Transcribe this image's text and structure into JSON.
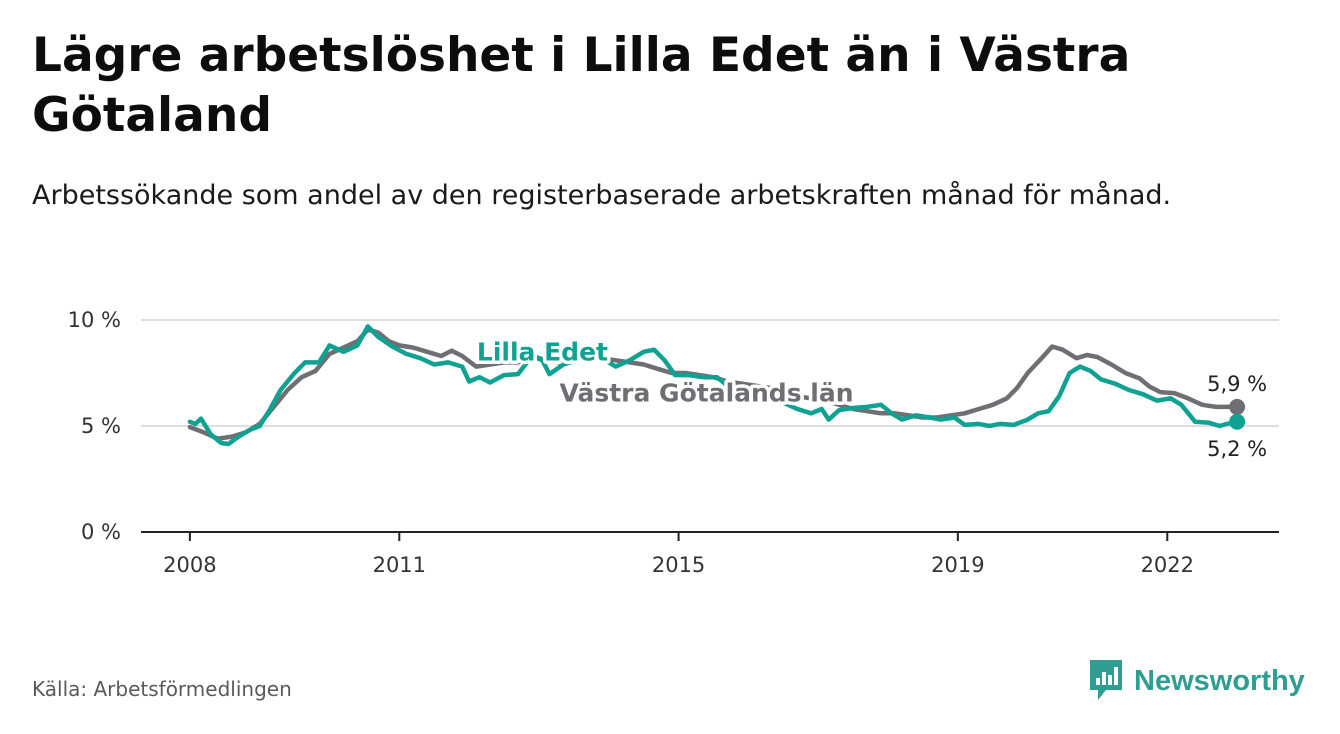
{
  "header": {
    "title": "Lägre arbetslöshet i Lilla Edet än i Västra Götaland",
    "subtitle": "Arbetssökande som andel av den registerbaserade arbetskraften månad för månad."
  },
  "footer": {
    "source": "Källa: Arbetsförmedlingen",
    "brand": "Newsworthy"
  },
  "colors": {
    "lilla_edet": "#0fa192",
    "vastra_gotaland": "#6f6e73",
    "grid": "#d4d4d4",
    "axis": "#222222"
  },
  "chart_data": {
    "type": "line",
    "title": "Lägre arbetslöshet i Lilla Edet än i Västra Götaland",
    "ylabel": "",
    "xlabel": "",
    "ylim": [
      0,
      10
    ],
    "xlim": [
      2007.3,
      2023.6
    ],
    "y_ticks": [
      {
        "value": 0,
        "label": "0 %"
      },
      {
        "value": 5,
        "label": "5 %"
      },
      {
        "value": 10,
        "label": "10 %"
      }
    ],
    "x_ticks": [
      {
        "value": 2008,
        "label": "2008"
      },
      {
        "value": 2011,
        "label": "2011"
      },
      {
        "value": 2015,
        "label": "2015"
      },
      {
        "value": 2019,
        "label": "2019"
      },
      {
        "value": 2022,
        "label": "2022"
      }
    ],
    "series": [
      {
        "name": "Västra Götalands län",
        "label": "Västra Götalands län",
        "color": "#6f6e73",
        "end_label": "5,9 %",
        "points": [
          [
            2008.0,
            4.95
          ],
          [
            2008.2,
            4.7
          ],
          [
            2008.4,
            4.4
          ],
          [
            2008.6,
            4.5
          ],
          [
            2008.8,
            4.7
          ],
          [
            2009.0,
            5.1
          ],
          [
            2009.2,
            5.9
          ],
          [
            2009.4,
            6.7
          ],
          [
            2009.6,
            7.3
          ],
          [
            2009.8,
            7.6
          ],
          [
            2010.0,
            8.4
          ],
          [
            2010.2,
            8.7
          ],
          [
            2010.4,
            9.0
          ],
          [
            2010.55,
            9.55
          ],
          [
            2010.7,
            9.4
          ],
          [
            2010.85,
            9.0
          ],
          [
            2011.0,
            8.8
          ],
          [
            2011.2,
            8.7
          ],
          [
            2011.4,
            8.5
          ],
          [
            2011.6,
            8.3
          ],
          [
            2011.75,
            8.55
          ],
          [
            2011.9,
            8.3
          ],
          [
            2012.1,
            7.8
          ],
          [
            2012.3,
            7.9
          ],
          [
            2012.5,
            8.0
          ],
          [
            2012.7,
            8.0
          ],
          [
            2012.9,
            8.3
          ],
          [
            2013.1,
            8.1
          ],
          [
            2013.3,
            8.0
          ],
          [
            2013.5,
            8.2
          ],
          [
            2013.7,
            8.1
          ],
          [
            2013.9,
            8.2
          ],
          [
            2014.1,
            8.1
          ],
          [
            2014.3,
            8.0
          ],
          [
            2014.5,
            7.9
          ],
          [
            2014.7,
            7.7
          ],
          [
            2014.9,
            7.5
          ],
          [
            2015.1,
            7.5
          ],
          [
            2015.3,
            7.4
          ],
          [
            2015.5,
            7.3
          ],
          [
            2015.7,
            7.1
          ],
          [
            2015.9,
            7.0
          ],
          [
            2016.1,
            6.9
          ],
          [
            2016.3,
            6.8
          ],
          [
            2016.5,
            6.6
          ],
          [
            2016.7,
            6.4
          ],
          [
            2016.9,
            6.3
          ],
          [
            2017.1,
            6.2
          ],
          [
            2017.3,
            6.0
          ],
          [
            2017.5,
            5.8
          ],
          [
            2017.7,
            5.7
          ],
          [
            2017.9,
            5.6
          ],
          [
            2018.1,
            5.6
          ],
          [
            2018.3,
            5.5
          ],
          [
            2018.5,
            5.4
          ],
          [
            2018.7,
            5.4
          ],
          [
            2018.9,
            5.5
          ],
          [
            2019.1,
            5.6
          ],
          [
            2019.3,
            5.8
          ],
          [
            2019.5,
            6.0
          ],
          [
            2019.7,
            6.3
          ],
          [
            2019.85,
            6.8
          ],
          [
            2020.0,
            7.5
          ],
          [
            2020.2,
            8.2
          ],
          [
            2020.35,
            8.75
          ],
          [
            2020.5,
            8.6
          ],
          [
            2020.7,
            8.2
          ],
          [
            2020.85,
            8.35
          ],
          [
            2021.0,
            8.25
          ],
          [
            2021.2,
            7.9
          ],
          [
            2021.4,
            7.5
          ],
          [
            2021.6,
            7.25
          ],
          [
            2021.75,
            6.85
          ],
          [
            2021.9,
            6.6
          ],
          [
            2022.1,
            6.55
          ],
          [
            2022.3,
            6.3
          ],
          [
            2022.5,
            6.0
          ],
          [
            2022.7,
            5.9
          ],
          [
            2022.9,
            5.9
          ],
          [
            2023.0,
            5.9
          ]
        ]
      },
      {
        "name": "Lilla Edet",
        "label": "Lilla Edet",
        "color": "#0fa192",
        "end_label": "5,2 %",
        "points": [
          [
            2008.0,
            5.2
          ],
          [
            2008.08,
            5.1
          ],
          [
            2008.16,
            5.35
          ],
          [
            2008.3,
            4.6
          ],
          [
            2008.45,
            4.2
          ],
          [
            2008.55,
            4.15
          ],
          [
            2008.7,
            4.5
          ],
          [
            2008.85,
            4.8
          ],
          [
            2009.0,
            5.0
          ],
          [
            2009.15,
            5.8
          ],
          [
            2009.3,
            6.7
          ],
          [
            2009.5,
            7.5
          ],
          [
            2009.65,
            8.0
          ],
          [
            2009.85,
            8.0
          ],
          [
            2010.0,
            8.8
          ],
          [
            2010.2,
            8.5
          ],
          [
            2010.4,
            8.8
          ],
          [
            2010.55,
            9.7
          ],
          [
            2010.7,
            9.2
          ],
          [
            2010.9,
            8.75
          ],
          [
            2011.1,
            8.4
          ],
          [
            2011.3,
            8.2
          ],
          [
            2011.5,
            7.9
          ],
          [
            2011.7,
            8.0
          ],
          [
            2011.9,
            7.8
          ],
          [
            2012.0,
            7.1
          ],
          [
            2012.15,
            7.3
          ],
          [
            2012.3,
            7.05
          ],
          [
            2012.5,
            7.4
          ],
          [
            2012.7,
            7.45
          ],
          [
            2012.9,
            8.3
          ],
          [
            2013.05,
            8.1
          ],
          [
            2013.15,
            7.45
          ],
          [
            2013.35,
            7.9
          ],
          [
            2013.55,
            8.1
          ],
          [
            2013.7,
            8.4
          ],
          [
            2013.9,
            8.2
          ],
          [
            2014.1,
            7.8
          ],
          [
            2014.3,
            8.1
          ],
          [
            2014.5,
            8.5
          ],
          [
            2014.65,
            8.6
          ],
          [
            2014.8,
            8.1
          ],
          [
            2014.95,
            7.4
          ],
          [
            2015.15,
            7.4
          ],
          [
            2015.35,
            7.3
          ],
          [
            2015.55,
            7.3
          ],
          [
            2015.7,
            6.9
          ],
          [
            2015.9,
            6.6
          ],
          [
            2016.1,
            6.3
          ],
          [
            2016.3,
            6.4
          ],
          [
            2016.5,
            6.1
          ],
          [
            2016.7,
            5.8
          ],
          [
            2016.9,
            5.6
          ],
          [
            2017.05,
            5.8
          ],
          [
            2017.15,
            5.3
          ],
          [
            2017.3,
            5.75
          ],
          [
            2017.5,
            5.85
          ],
          [
            2017.7,
            5.9
          ],
          [
            2017.9,
            6.0
          ],
          [
            2018.05,
            5.6
          ],
          [
            2018.2,
            5.3
          ],
          [
            2018.4,
            5.5
          ],
          [
            2018.6,
            5.4
          ],
          [
            2018.75,
            5.3
          ],
          [
            2018.95,
            5.4
          ],
          [
            2019.1,
            5.05
          ],
          [
            2019.3,
            5.1
          ],
          [
            2019.45,
            5.0
          ],
          [
            2019.6,
            5.1
          ],
          [
            2019.8,
            5.05
          ],
          [
            2020.0,
            5.3
          ],
          [
            2020.15,
            5.6
          ],
          [
            2020.3,
            5.7
          ],
          [
            2020.45,
            6.4
          ],
          [
            2020.6,
            7.5
          ],
          [
            2020.75,
            7.8
          ],
          [
            2020.9,
            7.6
          ],
          [
            2021.05,
            7.2
          ],
          [
            2021.25,
            7.0
          ],
          [
            2021.45,
            6.7
          ],
          [
            2021.65,
            6.5
          ],
          [
            2021.85,
            6.2
          ],
          [
            2022.05,
            6.3
          ],
          [
            2022.2,
            6.0
          ],
          [
            2022.4,
            5.2
          ],
          [
            2022.6,
            5.15
          ],
          [
            2022.75,
            5.0
          ],
          [
            2022.85,
            5.1
          ],
          [
            2023.0,
            5.2
          ]
        ]
      }
    ]
  }
}
